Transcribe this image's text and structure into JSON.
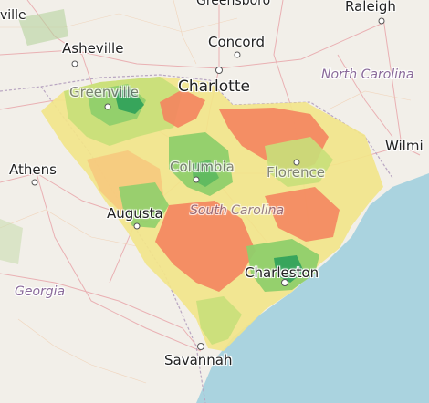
{
  "map": {
    "cities": {
      "greensboro": "Greensboro",
      "raleigh": "Raleigh",
      "asheville": "Asheville",
      "concord": "Concord",
      "charlotte": "Charlotte",
      "wilmington": "Wilmi",
      "athens": "Athens",
      "augusta": "Augusta",
      "greenville": "Greenville",
      "columbia": "Columbia",
      "florence": "Florence",
      "charleston": "Charleston",
      "savannah": "Savannah",
      "edge_left": "ville"
    },
    "states": {
      "north_carolina": "North Carolina",
      "south_carolina": "South Carolina",
      "georgia": "Georgia"
    },
    "choropleth_colors": {
      "low": "#f4845f",
      "mid_low": "#f7c77c",
      "mid": "#f2e58a",
      "mid_high": "#c8df7a",
      "high": "#8fcf6b",
      "highest": "#2ea05a"
    },
    "basemap_colors": {
      "land": "#f2efe9",
      "water": "#aad3df",
      "roads": "#e8a1a6",
      "borders": "#b9a6c2"
    }
  }
}
